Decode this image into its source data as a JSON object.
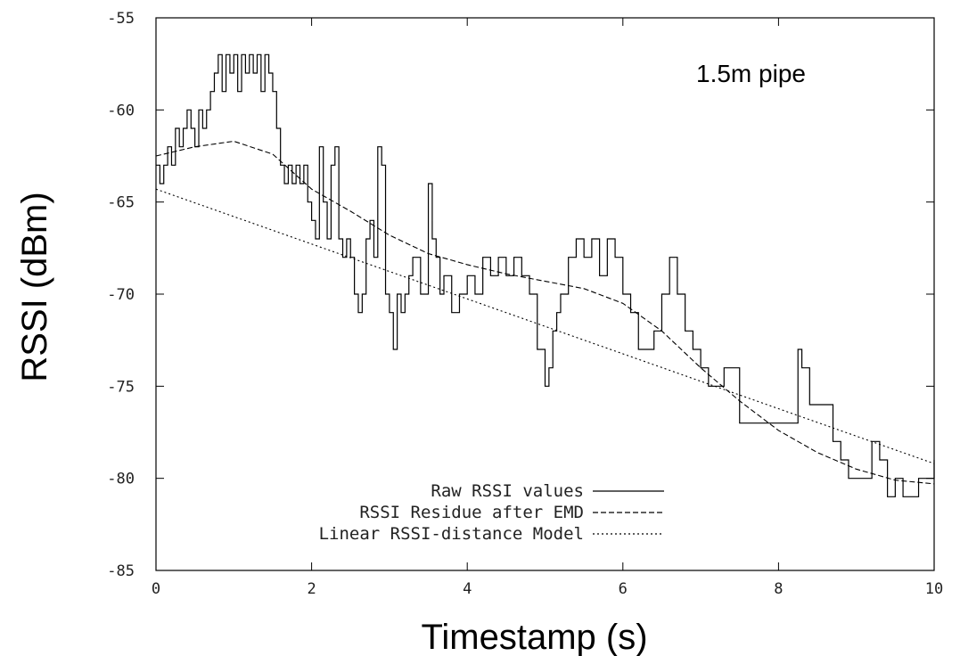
{
  "chart_data": {
    "type": "line",
    "title": "",
    "xlabel": "Timestamp (s)",
    "ylabel": "RSSI (dBm)",
    "xlim": [
      0,
      10
    ],
    "ylim": [
      -85,
      -55
    ],
    "xticks": [
      0,
      2,
      4,
      6,
      8,
      10
    ],
    "yticks": [
      -85,
      -80,
      -75,
      -70,
      -65,
      -60,
      -55
    ],
    "grid": false,
    "legend_position": "bottom-left",
    "annotation": "1.5m pipe",
    "series": [
      {
        "name": "Raw RSSI values",
        "style": "solid",
        "x": [
          0,
          0.05,
          0.1,
          0.15,
          0.2,
          0.25,
          0.3,
          0.35,
          0.4,
          0.45,
          0.5,
          0.55,
          0.6,
          0.65,
          0.7,
          0.75,
          0.8,
          0.85,
          0.9,
          0.95,
          1.0,
          1.05,
          1.1,
          1.15,
          1.2,
          1.25,
          1.3,
          1.35,
          1.4,
          1.45,
          1.5,
          1.55,
          1.6,
          1.65,
          1.7,
          1.75,
          1.8,
          1.85,
          1.9,
          1.95,
          2.0,
          2.05,
          2.1,
          2.15,
          2.2,
          2.25,
          2.3,
          2.35,
          2.4,
          2.45,
          2.5,
          2.55,
          2.6,
          2.65,
          2.7,
          2.75,
          2.8,
          2.85,
          2.9,
          2.95,
          3.0,
          3.05,
          3.1,
          3.15,
          3.2,
          3.25,
          3.3,
          3.4,
          3.5,
          3.55,
          3.6,
          3.65,
          3.7,
          3.8,
          3.9,
          4.0,
          4.1,
          4.2,
          4.3,
          4.4,
          4.5,
          4.6,
          4.7,
          4.8,
          4.9,
          5.0,
          5.05,
          5.1,
          5.15,
          5.2,
          5.3,
          5.4,
          5.5,
          5.6,
          5.7,
          5.8,
          5.9,
          6.0,
          6.1,
          6.2,
          6.3,
          6.4,
          6.5,
          6.6,
          6.7,
          6.8,
          6.9,
          7.0,
          7.1,
          7.2,
          7.3,
          7.4,
          7.5,
          7.6,
          7.7,
          7.8,
          7.9,
          8.0,
          8.1,
          8.2,
          8.25,
          8.3,
          8.4,
          8.5,
          8.6,
          8.7,
          8.8,
          8.9,
          9.0,
          9.1,
          9.2,
          9.3,
          9.4,
          9.5,
          9.6,
          9.7,
          9.8,
          9.9,
          10.0
        ],
        "y": [
          -63,
          -64,
          -63,
          -62,
          -63,
          -61,
          -62,
          -61,
          -60,
          -61,
          -62,
          -60,
          -61,
          -60,
          -59,
          -58,
          -57,
          -59,
          -57,
          -58,
          -57,
          -59,
          -57,
          -58,
          -57,
          -58,
          -57,
          -59,
          -57,
          -58,
          -59,
          -61,
          -63,
          -64,
          -63,
          -64,
          -63,
          -64,
          -63,
          -65,
          -66,
          -67,
          -62,
          -65,
          -67,
          -63,
          -62,
          -67,
          -68,
          -67,
          -68,
          -70,
          -71,
          -70,
          -67,
          -66,
          -68,
          -62,
          -63,
          -70,
          -71,
          -73,
          -70,
          -71,
          -70,
          -69,
          -68,
          -70,
          -64,
          -67,
          -68,
          -70,
          -69,
          -71,
          -70,
          -69,
          -70,
          -68,
          -69,
          -68,
          -69,
          -68,
          -69,
          -70,
          -73,
          -75,
          -74,
          -72,
          -71,
          -70,
          -68,
          -67,
          -68,
          -67,
          -69,
          -67,
          -68,
          -70,
          -71,
          -73,
          -73,
          -72,
          -70,
          -68,
          -70,
          -72,
          -73,
          -74,
          -75,
          -75,
          -74,
          -74,
          -77,
          -77,
          -77,
          -77,
          -77,
          -77,
          -77,
          -77,
          -73,
          -74,
          -76,
          -76,
          -76,
          -78,
          -79,
          -80,
          -80,
          -80,
          -78,
          -79,
          -81,
          -80,
          -81,
          -81,
          -80,
          -80,
          -79
        ]
      },
      {
        "name": "RSSI Residue after EMD",
        "style": "dashed",
        "x": [
          0,
          0.5,
          1.0,
          1.5,
          2.0,
          2.5,
          3.0,
          3.5,
          4.0,
          4.5,
          5.0,
          5.5,
          6.0,
          6.5,
          7.0,
          7.5,
          8.0,
          8.5,
          9.0,
          9.5,
          10.0
        ],
        "y": [
          -62.5,
          -62.0,
          -61.7,
          -62.4,
          -64.3,
          -65.5,
          -66.8,
          -67.8,
          -68.4,
          -68.9,
          -69.3,
          -69.7,
          -70.5,
          -72.0,
          -74.0,
          -75.8,
          -77.4,
          -78.6,
          -79.5,
          -80.1,
          -80.3
        ]
      },
      {
        "name": "Linear RSSI-distance Model",
        "style": "dotted",
        "x": [
          0,
          10
        ],
        "y": [
          -64.3,
          -79.2
        ]
      }
    ]
  }
}
